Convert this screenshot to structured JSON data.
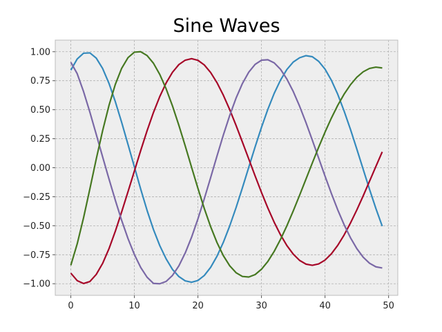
{
  "chart_data": {
    "type": "line",
    "title": "Sine Waves",
    "xlabel": "",
    "ylabel": "",
    "xlim": [
      -2.45,
      51.45
    ],
    "ylim": [
      -1.1,
      1.1
    ],
    "xticks": [
      0,
      10,
      20,
      30,
      40,
      50
    ],
    "yticks": [
      -1.0,
      -0.75,
      -0.5,
      -0.25,
      0.0,
      0.25,
      0.5,
      0.75,
      1.0
    ],
    "ytick_labels": [
      "−1.00",
      "−0.75",
      "−0.50",
      "−0.25",
      "0.00",
      "0.25",
      "0.50",
      "0.75",
      "1.00"
    ],
    "grid": true,
    "legend": null,
    "x": [
      0,
      1,
      2,
      3,
      4,
      5,
      6,
      7,
      8,
      9,
      10,
      11,
      12,
      13,
      14,
      15,
      16,
      17,
      18,
      19,
      20,
      21,
      22,
      23,
      24,
      25,
      26,
      27,
      28,
      29,
      30,
      31,
      32,
      33,
      34,
      35,
      36,
      37,
      38,
      39,
      40,
      41,
      42,
      43,
      44,
      45,
      46,
      47,
      48,
      49
    ],
    "series": [
      {
        "color": "#348abd",
        "values": [
          0.841,
          0.937,
          0.987,
          0.99,
          0.945,
          0.856,
          0.728,
          0.57,
          0.391,
          0.2,
          0.008,
          -0.185,
          -0.368,
          -0.532,
          -0.672,
          -0.786,
          -0.877,
          -0.938,
          -0.975,
          -0.987,
          -0.972,
          -0.929,
          -0.859,
          -0.763,
          -0.643,
          -0.502,
          -0.344,
          -0.173,
          0.004,
          0.18,
          0.348,
          0.503,
          0.641,
          0.756,
          0.847,
          0.911,
          0.948,
          0.966,
          0.957,
          0.917,
          0.85,
          0.754,
          0.633,
          0.489,
          0.331,
          0.161,
          -0.013,
          -0.186,
          -0.351,
          -0.504
        ]
      },
      {
        "color": "#a60628",
        "values": [
          -0.909,
          -0.973,
          -0.998,
          -0.981,
          -0.92,
          -0.825,
          -0.699,
          -0.548,
          -0.381,
          -0.206,
          -0.029,
          0.149,
          0.319,
          0.476,
          0.614,
          0.731,
          0.823,
          0.889,
          0.927,
          0.94,
          0.926,
          0.886,
          0.821,
          0.733,
          0.625,
          0.501,
          0.365,
          0.221,
          0.075,
          -0.071,
          -0.213,
          -0.347,
          -0.47,
          -0.579,
          -0.671,
          -0.745,
          -0.799,
          -0.831,
          -0.841,
          -0.829,
          -0.796,
          -0.742,
          -0.669,
          -0.58,
          -0.477,
          -0.364,
          -0.243,
          -0.117,
          0.011,
          0.137
        ]
      },
      {
        "color": "#7a68a6",
        "values": [
          0.909,
          0.811,
          0.657,
          0.479,
          0.288,
          0.094,
          -0.096,
          -0.28,
          -0.454,
          -0.611,
          -0.748,
          -0.86,
          -0.944,
          -0.997,
          -1.0,
          -0.98,
          -0.928,
          -0.846,
          -0.735,
          -0.599,
          -0.441,
          -0.268,
          -0.085,
          0.101,
          0.282,
          0.45,
          0.6,
          0.726,
          0.824,
          0.891,
          0.927,
          0.931,
          0.904,
          0.848,
          0.764,
          0.657,
          0.53,
          0.389,
          0.238,
          0.083,
          -0.072,
          -0.222,
          -0.363,
          -0.491,
          -0.603,
          -0.697,
          -0.771,
          -0.823,
          -0.854,
          -0.864
        ]
      },
      {
        "color": "#467821",
        "values": [
          -0.841,
          -0.657,
          -0.432,
          -0.182,
          0.075,
          0.318,
          0.536,
          0.718,
          0.857,
          0.949,
          0.996,
          1.0,
          0.967,
          0.901,
          0.804,
          0.68,
          0.532,
          0.366,
          0.188,
          0.004,
          -0.178,
          -0.351,
          -0.508,
          -0.645,
          -0.758,
          -0.845,
          -0.905,
          -0.937,
          -0.942,
          -0.921,
          -0.875,
          -0.808,
          -0.721,
          -0.617,
          -0.5,
          -0.372,
          -0.237,
          -0.098,
          0.041,
          0.177,
          0.307,
          0.428,
          0.538,
          0.634,
          0.715,
          0.78,
          0.827,
          0.856,
          0.867,
          0.86
        ]
      }
    ]
  }
}
